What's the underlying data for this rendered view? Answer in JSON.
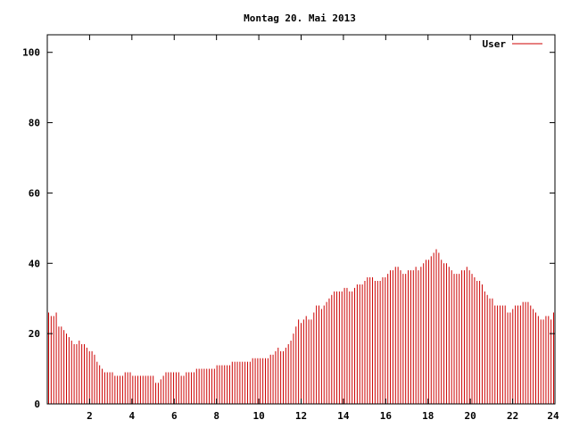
{
  "chart_data": {
    "type": "bar",
    "title": "Montag 20. Mai 2013",
    "xlabel": "",
    "ylabel": "",
    "xlim": [
      0,
      24
    ],
    "ylim": [
      0,
      105
    ],
    "xticks": [
      2,
      4,
      6,
      8,
      10,
      12,
      14,
      16,
      18,
      20,
      22,
      24
    ],
    "yticks": [
      0,
      20,
      40,
      60,
      80,
      100
    ],
    "grid": false,
    "legend_position": "top-right",
    "series": [
      {
        "name": "User",
        "color": "#cc0000",
        "values": [
          26,
          25,
          25,
          26,
          22,
          22,
          21,
          20,
          19,
          18,
          17,
          17,
          18,
          17,
          17,
          16,
          15,
          15,
          14,
          12,
          11,
          10,
          9,
          9,
          9,
          9,
          8,
          8,
          8,
          8,
          9,
          9,
          9,
          8,
          8,
          8,
          8,
          8,
          8,
          8,
          8,
          8,
          6,
          6,
          7,
          8,
          9,
          9,
          9,
          9,
          9,
          9,
          8,
          8,
          9,
          9,
          9,
          9,
          10,
          10,
          10,
          10,
          10,
          10,
          10,
          10,
          11,
          11,
          11,
          11,
          11,
          11,
          12,
          12,
          12,
          12,
          12,
          12,
          12,
          12,
          13,
          13,
          13,
          13,
          13,
          13,
          13,
          14,
          14,
          15,
          16,
          15,
          15,
          16,
          17,
          18,
          20,
          22,
          24,
          23,
          24,
          25,
          24,
          24,
          26,
          28,
          28,
          27,
          28,
          29,
          30,
          31,
          32,
          32,
          32,
          32,
          33,
          33,
          32,
          32,
          33,
          34,
          34,
          34,
          35,
          36,
          36,
          36,
          35,
          35,
          35,
          36,
          36,
          37,
          38,
          38,
          39,
          39,
          38,
          37,
          37,
          38,
          38,
          38,
          39,
          38,
          39,
          40,
          41,
          41,
          42,
          43,
          44,
          43,
          41,
          40,
          40,
          39,
          38,
          37,
          37,
          37,
          38,
          38,
          39,
          38,
          37,
          36,
          35,
          35,
          34,
          32,
          31,
          30,
          30,
          28,
          28,
          28,
          28,
          28,
          26,
          26,
          27,
          28,
          28,
          28,
          29,
          29,
          29,
          28,
          27,
          26,
          25,
          24,
          24,
          25,
          25,
          24,
          26
        ]
      }
    ]
  }
}
